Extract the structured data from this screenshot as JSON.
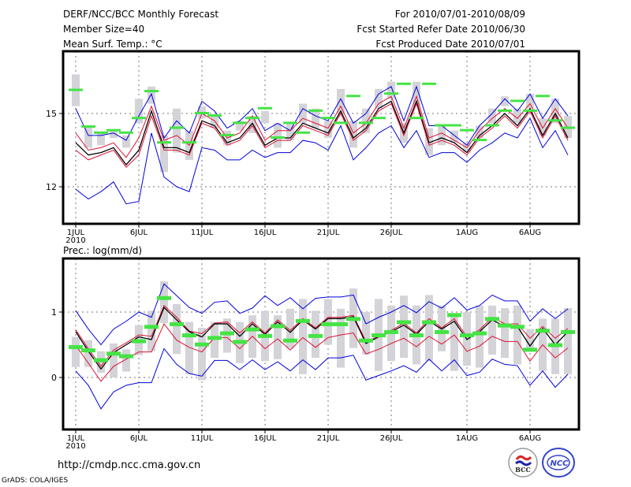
{
  "header": {
    "title": "DERF/NCC/BCC Monthly Forecast",
    "member_size": "Member Size=40",
    "variable": "Mean Surf. Temp.: °C",
    "period": "For 2010/07/01-2010/08/09",
    "started": "Fcst Started Refer Date 2010/06/30",
    "produced": "Fcst Produced Date 2010/07/01"
  },
  "footer": {
    "url": "http://cmdp.ncc.cma.gov.cn",
    "credit": "GrADS: COLA/IGES",
    "logo_left": "BCC",
    "logo_right": "NCC"
  },
  "colors": {
    "box": "#d3d3d8",
    "median": "#44e444",
    "outer": "#0000dd",
    "inner": "#dd1133",
    "mean": "#000000"
  },
  "chart_data": [
    {
      "type": "line",
      "title": "Mean Surf. Temp.: °C",
      "ylabel": "°C",
      "ylim": [
        10.5,
        17.5
      ],
      "yticks": [
        12,
        15
      ],
      "xticks": [
        {
          "day": 1,
          "label": "1JUL"
        },
        {
          "day": 6,
          "label": "6JUL"
        },
        {
          "day": 11,
          "label": "11JUL"
        },
        {
          "day": 16,
          "label": "16JUL"
        },
        {
          "day": 21,
          "label": "21JUL"
        },
        {
          "day": 26,
          "label": "26JUL"
        },
        {
          "day": 32,
          "label": "1AUG"
        },
        {
          "day": 37,
          "label": "6AUG"
        }
      ],
      "xyear": "2010",
      "grid": true,
      "box_top": [
        16.6,
        14.5,
        14.2,
        14.3,
        14.1,
        15.6,
        16.1,
        14.1,
        15.2,
        14.3,
        15.3,
        14.9,
        14.3,
        14.7,
        14.9,
        15.1,
        14.6,
        14.6,
        15.4,
        15.2,
        14.7,
        16.0,
        14.7,
        15.2,
        16.0,
        16.3,
        14.6,
        16.3,
        14.4,
        14.5,
        14.3,
        13.8,
        14.5,
        15.2,
        15.7,
        15.2,
        15.8,
        14.8,
        15.6,
        14.9
      ],
      "box_bottom": [
        15.3,
        13.6,
        13.7,
        14.0,
        13.6,
        14.6,
        15.4,
        12.6,
        13.4,
        13.1,
        14.8,
        14.4,
        13.7,
        14.3,
        14.2,
        14.6,
        13.6,
        13.9,
        14.6,
        14.4,
        14.0,
        15.0,
        13.6,
        14.2,
        15.2,
        15.6,
        13.8,
        15.3,
        13.3,
        13.7,
        13.8,
        13.4,
        14.0,
        14.6,
        15.3,
        14.6,
        15.2,
        14.1,
        14.6,
        14.0
      ],
      "series": [
        {
          "name": "median",
          "values": [
            15.95,
            14.45,
            14.2,
            14.3,
            14.2,
            14.8,
            15.9,
            13.8,
            14.4,
            13.8,
            15.0,
            14.9,
            14.1,
            14.6,
            14.8,
            15.2,
            14.0,
            14.6,
            14.2,
            15.1,
            14.8,
            14.6,
            15.7,
            14.6,
            14.8,
            15.8,
            16.2,
            14.8,
            16.2,
            14.5,
            14.5,
            14.3,
            13.9,
            14.5,
            15.1,
            15.5,
            15.1,
            15.7,
            14.7,
            14.4
          ]
        },
        {
          "name": "outer-upper",
          "values": [
            15.2,
            14.1,
            14.1,
            14.2,
            13.9,
            14.9,
            15.8,
            14.0,
            14.7,
            14.2,
            15.5,
            15.1,
            14.4,
            14.7,
            15.2,
            14.3,
            14.6,
            14.3,
            15.2,
            14.9,
            14.7,
            15.6,
            14.6,
            15.0,
            15.8,
            16.1,
            14.7,
            16.1,
            14.5,
            14.5,
            14.1,
            13.7,
            14.5,
            15.0,
            15.6,
            15.1,
            15.8,
            14.8,
            15.6,
            14.9
          ]
        },
        {
          "name": "inner-upper",
          "values": [
            14.2,
            13.5,
            13.6,
            13.8,
            13.2,
            14.0,
            15.3,
            13.9,
            14.1,
            13.7,
            15.0,
            14.7,
            14.0,
            14.2,
            14.9,
            13.9,
            14.3,
            14.3,
            14.8,
            14.6,
            14.4,
            15.3,
            14.2,
            14.6,
            15.4,
            15.7,
            14.4,
            15.7,
            14.0,
            14.2,
            13.9,
            13.6,
            14.3,
            14.8,
            15.2,
            14.8,
            15.4,
            14.4,
            15.2,
            14.4
          ]
        },
        {
          "name": "mean",
          "values": [
            13.8,
            13.3,
            13.4,
            13.6,
            12.9,
            13.5,
            15.1,
            13.6,
            13.6,
            13.4,
            14.7,
            14.5,
            13.8,
            14.0,
            14.6,
            13.7,
            14.0,
            14.0,
            14.6,
            14.4,
            14.2,
            15.1,
            14.0,
            14.4,
            15.2,
            15.5,
            14.2,
            15.5,
            13.8,
            14.0,
            13.8,
            13.4,
            14.1,
            14.5,
            15.0,
            14.5,
            15.2,
            14.1,
            15.0,
            14.0
          ]
        },
        {
          "name": "inner-lower",
          "values": [
            13.5,
            13.1,
            13.3,
            13.5,
            12.8,
            13.3,
            14.9,
            13.5,
            13.5,
            13.3,
            14.6,
            14.4,
            13.7,
            13.9,
            14.5,
            13.6,
            13.9,
            13.9,
            14.5,
            14.3,
            14.1,
            15.0,
            13.9,
            14.3,
            15.1,
            15.4,
            14.1,
            15.4,
            13.7,
            13.9,
            13.7,
            13.3,
            14.0,
            14.4,
            14.9,
            14.4,
            15.1,
            14.0,
            14.9,
            13.9
          ]
        },
        {
          "name": "outer-lower",
          "values": [
            11.9,
            11.5,
            11.8,
            12.2,
            11.3,
            11.4,
            14.2,
            12.4,
            12.0,
            11.8,
            13.6,
            13.5,
            13.1,
            13.1,
            13.5,
            13.2,
            13.4,
            13.4,
            13.9,
            13.8,
            13.5,
            14.5,
            13.1,
            13.6,
            14.2,
            14.5,
            13.6,
            14.3,
            13.2,
            13.4,
            13.4,
            13.0,
            13.5,
            13.8,
            14.2,
            14.0,
            14.8,
            13.6,
            14.3,
            13.3
          ]
        }
      ]
    },
    {
      "type": "line",
      "title": "Prec.: log(mm/d)",
      "ylabel": "log(mm/d)",
      "ylim": [
        -0.8,
        1.8
      ],
      "yticks": [
        0,
        1
      ],
      "xticks": [
        {
          "day": 1,
          "label": "1JUL"
        },
        {
          "day": 6,
          "label": "6JUL"
        },
        {
          "day": 11,
          "label": "11JUL"
        },
        {
          "day": 16,
          "label": "16JUL"
        },
        {
          "day": 21,
          "label": "21JUL"
        },
        {
          "day": 26,
          "label": "26JUL"
        },
        {
          "day": 32,
          "label": "1AUG"
        },
        {
          "day": 37,
          "label": "6AUG"
        }
      ],
      "xyear": "2010",
      "grid": true,
      "box_top": [
        0.62,
        0.57,
        0.4,
        0.52,
        0.43,
        0.8,
        1.02,
        1.47,
        1.12,
        0.85,
        0.76,
        0.85,
        0.9,
        0.85,
        0.95,
        1.02,
        0.95,
        1.05,
        1.2,
        1.02,
        1.2,
        1.05,
        1.36,
        1.0,
        1.2,
        1.1,
        1.25,
        1.1,
        1.26,
        1.1,
        0.96,
        1.0,
        1.1,
        1.1,
        1.06,
        1.1,
        0.74,
        0.9,
        0.9,
        1.06
      ],
      "box_bottom": [
        0.16,
        0.16,
        0.07,
        0.0,
        0.09,
        0.34,
        0.4,
        0.83,
        0.36,
        0.05,
        -0.04,
        0.3,
        0.38,
        0.22,
        0.3,
        0.25,
        0.28,
        0.45,
        0.05,
        0.3,
        0.5,
        0.15,
        0.45,
        0.35,
        0.1,
        0.25,
        0.3,
        0.2,
        0.25,
        0.4,
        0.1,
        0.18,
        0.15,
        0.35,
        0.3,
        0.2,
        0.4,
        0.1,
        0.05,
        0.05
      ],
      "series": [
        {
          "name": "median",
          "values": [
            0.47,
            0.42,
            0.27,
            0.37,
            0.33,
            0.56,
            0.78,
            1.22,
            0.82,
            0.65,
            0.51,
            0.61,
            0.68,
            0.55,
            0.74,
            0.64,
            0.79,
            0.57,
            0.87,
            0.64,
            0.82,
            0.82,
            0.9,
            0.57,
            0.65,
            0.7,
            0.85,
            0.65,
            0.85,
            0.7,
            0.96,
            0.65,
            0.68,
            0.9,
            0.8,
            0.78,
            0.43,
            0.72,
            0.5,
            0.7
          ]
        },
        {
          "name": "outer-upper",
          "values": [
            1.02,
            0.74,
            0.5,
            0.74,
            0.86,
            1.0,
            0.92,
            1.43,
            1.25,
            1.07,
            0.98,
            1.15,
            1.17,
            0.98,
            1.06,
            1.25,
            1.1,
            1.22,
            1.05,
            1.21,
            1.23,
            1.23,
            1.26,
            0.82,
            0.92,
            1.0,
            1.1,
            0.99,
            1.16,
            1.06,
            1.22,
            1.03,
            1.1,
            1.26,
            1.17,
            1.17,
            0.86,
            1.05,
            0.9,
            1.05
          ]
        },
        {
          "name": "inner-upper",
          "values": [
            0.73,
            0.44,
            0.17,
            0.42,
            0.53,
            0.65,
            0.63,
            1.1,
            0.92,
            0.71,
            0.67,
            0.83,
            0.85,
            0.68,
            0.85,
            0.68,
            0.88,
            0.72,
            0.9,
            0.76,
            0.92,
            0.92,
            0.95,
            0.55,
            0.63,
            0.72,
            0.83,
            0.68,
            0.9,
            0.76,
            0.9,
            0.62,
            0.73,
            0.92,
            0.82,
            0.82,
            0.6,
            0.78,
            0.6,
            0.75
          ]
        },
        {
          "name": "mean",
          "values": [
            0.7,
            0.4,
            0.13,
            0.38,
            0.5,
            0.62,
            0.58,
            1.07,
            0.88,
            0.7,
            0.62,
            0.82,
            0.82,
            0.63,
            0.82,
            0.66,
            0.85,
            0.69,
            0.88,
            0.74,
            0.9,
            0.9,
            0.93,
            0.52,
            0.62,
            0.7,
            0.8,
            0.66,
            0.86,
            0.74,
            0.86,
            0.58,
            0.7,
            0.88,
            0.78,
            0.78,
            0.48,
            0.75,
            0.5,
            0.7
          ]
        },
        {
          "name": "inner-lower",
          "values": [
            0.49,
            0.22,
            -0.06,
            0.17,
            0.28,
            0.39,
            0.39,
            0.82,
            0.57,
            0.46,
            0.39,
            0.61,
            0.61,
            0.44,
            0.63,
            0.44,
            0.59,
            0.42,
            0.61,
            0.46,
            0.61,
            0.65,
            0.68,
            0.36,
            0.43,
            0.52,
            0.6,
            0.47,
            0.63,
            0.51,
            0.65,
            0.4,
            0.48,
            0.63,
            0.55,
            0.55,
            0.25,
            0.5,
            0.3,
            0.45
          ]
        },
        {
          "name": "outer-lower",
          "values": [
            0.1,
            -0.12,
            -0.48,
            -0.22,
            -0.12,
            -0.08,
            -0.08,
            0.44,
            0.2,
            0.06,
            0.02,
            0.26,
            0.26,
            0.12,
            0.27,
            0.12,
            0.24,
            0.1,
            0.27,
            0.12,
            0.3,
            0.3,
            0.34,
            -0.04,
            0.03,
            0.1,
            0.18,
            0.08,
            0.28,
            0.1,
            0.27,
            0.03,
            0.08,
            0.28,
            0.2,
            0.18,
            -0.12,
            0.1,
            -0.15,
            0.05
          ]
        }
      ]
    }
  ]
}
